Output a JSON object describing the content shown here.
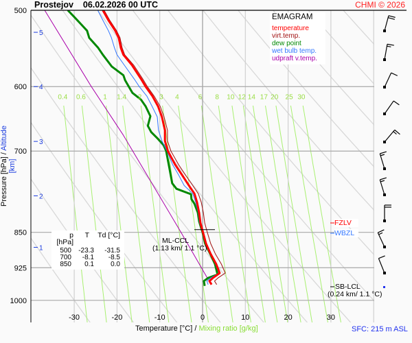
{
  "header": {
    "station": "Prostejov",
    "datetime": "06.02.2026 00 UTC",
    "copyright": "CHMI © 2026"
  },
  "legend": {
    "title": "EMAGRAM",
    "items": [
      {
        "label": "temperature",
        "color": "#ff0000"
      },
      {
        "label": "virt.temp.",
        "color": "#a01010"
      },
      {
        "label": "dew point",
        "color": "#008800"
      },
      {
        "label": "wet bulb temp.",
        "color": "#3377ff"
      },
      {
        "label": "udpraft v.temp.",
        "color": "#aa00aa"
      }
    ]
  },
  "table": {
    "headers": [
      "p [hPa]",
      "T",
      "Td [°C]"
    ],
    "rows": [
      [
        "500",
        "-23.3",
        "-31.5"
      ],
      [
        "700",
        "-8.1",
        "-8.5"
      ],
      [
        "850",
        "0.1",
        "0.0"
      ]
    ]
  },
  "annotations": {
    "ml_ccl": {
      "label": "ML-CCL",
      "detail": "(1.13 km/ 1.1 °C)",
      "pressure": 867
    },
    "sb_lcl": {
      "label": "SB-LCL",
      "detail": "(0.24 km/ 1.1 °C)",
      "pressure": 970
    },
    "fzlv": {
      "label": "FZLV",
      "color": "#ff0000",
      "pressure": 828
    },
    "wbzl": {
      "label": "WBZL",
      "color": "#3377ff",
      "pressure": 850
    }
  },
  "axes": {
    "ylabel_pressure": "Pressure [hPa]",
    "ylabel_sep": " / ",
    "ylabel_altitude": "Altitude [km]",
    "xlabel_temp": "Temperature [°C]",
    "xlabel_sep": " / ",
    "xlabel_mixing": "Mixing ratio [g/kg]",
    "surface": "SFC: 215 m ASL"
  },
  "chart_data": {
    "type": "line",
    "diagram": "emagram",
    "x_axis": {
      "label": "Temperature [°C]",
      "range": [
        -40,
        40
      ],
      "ticks": [
        -30,
        -20,
        -10,
        0,
        10,
        20,
        30
      ]
    },
    "y_axis": {
      "label": "Pressure [hPa]",
      "scale": "log",
      "range": [
        500,
        1050
      ],
      "inverted": true,
      "ticks": [
        500,
        600,
        700,
        850,
        925,
        1000
      ]
    },
    "altitude_ticks": [
      {
        "km": "5",
        "pressure": 527
      },
      {
        "km": "4",
        "pressure": 600
      },
      {
        "km": "3",
        "pressure": 684
      },
      {
        "km": "2",
        "pressure": 779
      },
      {
        "km": "1",
        "pressure": 881
      }
    ],
    "mixing_ratio_lines": [
      "0.4",
      "0.6",
      "1",
      "1.4",
      "2",
      "3",
      "4",
      "6",
      "8",
      "10",
      "12",
      "14",
      "17",
      "20",
      "25",
      "30"
    ],
    "mixing_ratio_label_pressure": 614,
    "dry_adiabats_theta_c": [
      -30,
      -20,
      -10,
      0,
      10,
      20,
      30,
      40,
      50,
      60,
      70,
      80,
      90,
      100
    ],
    "grid": true,
    "series": [
      {
        "name": "temperature",
        "color": "#ff0000",
        "p": [
          500,
          512,
          525,
          534,
          547,
          556,
          570,
          589,
          600,
          614,
          629,
          645,
          666,
          683,
          700,
          723,
          741,
          760,
          775,
          791,
          811,
          831,
          850,
          873,
          895,
          917,
          937,
          948,
          955,
          963
        ],
        "t": [
          -23.3,
          -22.0,
          -20.4,
          -19.6,
          -19.1,
          -18.5,
          -16.5,
          -14.4,
          -13.3,
          -11.7,
          -10.4,
          -9.5,
          -8.8,
          -8.8,
          -8.1,
          -6.4,
          -4.8,
          -3.2,
          -1.9,
          -1.3,
          -0.8,
          -0.5,
          0.1,
          0.8,
          1.9,
          3.2,
          4.0,
          2.4,
          1.6,
          2.1
        ]
      },
      {
        "name": "virt.temp.",
        "color": "#a01010",
        "p": [
          500,
          512,
          525,
          534,
          547,
          556,
          570,
          589,
          600,
          614,
          629,
          645,
          666,
          683,
          700,
          723,
          741,
          760,
          775,
          791,
          811,
          831,
          850,
          873,
          895,
          917,
          937,
          948,
          955,
          963
        ],
        "t": [
          -23.0,
          -21.7,
          -20.1,
          -19.3,
          -18.8,
          -18.2,
          -16.1,
          -14.0,
          -12.9,
          -11.3,
          -9.9,
          -9.0,
          -8.2,
          -8.2,
          -7.4,
          -5.6,
          -4.0,
          -2.3,
          -1.0,
          -0.3,
          0.2,
          0.5,
          1.1,
          1.9,
          3.0,
          4.4,
          5.3,
          3.6,
          2.8,
          3.3
        ]
      },
      {
        "name": "wet bulb temp.",
        "color": "#3377ff",
        "p": [
          500,
          512,
          525,
          534,
          547,
          556,
          570,
          589,
          600,
          614,
          629,
          645,
          666,
          683,
          700,
          723,
          741,
          760,
          775,
          791,
          811,
          831,
          850,
          873,
          895,
          917,
          937,
          948,
          955,
          963
        ],
        "t": [
          -24.5,
          -23.3,
          -22.0,
          -21.3,
          -20.6,
          -20.0,
          -18.3,
          -16.0,
          -14.8,
          -13.0,
          -11.8,
          -10.6,
          -10.3,
          -9.5,
          -8.3,
          -7.0,
          -5.6,
          -4.3,
          -2.3,
          -1.6,
          -1.0,
          -0.7,
          0.05,
          0.7,
          1.85,
          3.0,
          3.8,
          1.9,
          1.0,
          1.3
        ]
      },
      {
        "name": "dew point",
        "color": "#008800",
        "p": [
          500,
          508,
          517,
          525,
          534,
          547,
          556,
          572,
          584,
          591,
          609,
          619,
          629,
          644,
          659,
          669,
          680,
          690,
          700,
          731,
          756,
          766,
          776,
          785,
          794,
          811,
          828,
          842,
          850,
          873,
          895,
          917,
          940,
          948,
          955,
          966
        ],
        "t": [
          -31.5,
          -30.0,
          -28.4,
          -27.0,
          -26.5,
          -24.4,
          -23.3,
          -21.2,
          -18.5,
          -18.1,
          -16.4,
          -14.4,
          -13.3,
          -12.2,
          -12.8,
          -12.0,
          -10.4,
          -9.1,
          -8.5,
          -7.7,
          -7.1,
          -6.1,
          -2.7,
          -2.6,
          -1.9,
          -1.1,
          -0.8,
          -0.3,
          0.0,
          0.6,
          1.8,
          2.9,
          3.5,
          1.3,
          0.3,
          0.5
        ]
      },
      {
        "name": "udpraft v.temp.",
        "color": "#aa00aa",
        "p": [
          500,
          600,
          674,
          849,
          951
        ],
        "t": [
          -36.9,
          -26.0,
          -18.5,
          -5.1,
          1.3
        ]
      }
    ],
    "wind_barbs": [
      {
        "dir": 195,
        "kt": 20
      },
      {
        "dir": 190,
        "kt": 15
      },
      {
        "dir": 205,
        "kt": 10
      },
      {
        "dir": 215,
        "kt": 10
      },
      {
        "dir": 220,
        "kt": 15
      },
      {
        "dir": 163,
        "kt": 15
      },
      {
        "dir": 163,
        "kt": 15
      },
      {
        "dir": 180,
        "kt": 20
      },
      {
        "dir": 155,
        "kt": 15
      },
      {
        "dir": 158,
        "kt": 10
      }
    ]
  }
}
